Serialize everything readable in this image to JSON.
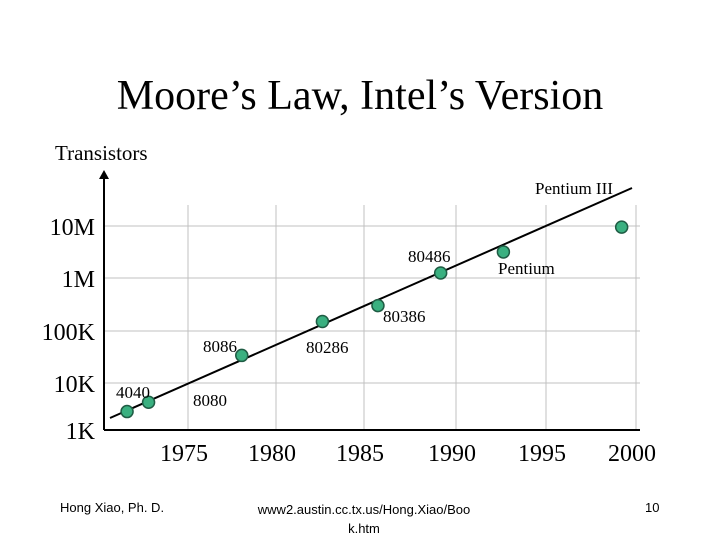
{
  "slide": {
    "title": "Moore’s Law, Intel’s Version",
    "footer_left": "Hong Xiao, Ph. D.",
    "footer_center": "www2.austin.cc.tx.us/Hong.Xiao/Boo k.htm",
    "footer_right": "10"
  },
  "chart_data": {
    "type": "scatter",
    "title": "",
    "ylabel": "Transistors",
    "xlabel": "",
    "y_scale": "log",
    "x_ticks": [
      "1975",
      "1980",
      "1985",
      "1990",
      "1995",
      "2000"
    ],
    "y_ticks": [
      "1K",
      "10K",
      "100K",
      "1M",
      "10M"
    ],
    "grid": true,
    "trendline": true,
    "colors": {
      "marker_fill": "#3ab080",
      "marker_stroke": "#1f5c44",
      "line": "#000000",
      "grid": "#c0c0c0"
    },
    "series": [
      {
        "points": [
          {
            "label": "4040",
            "x": 1971.6,
            "y": 2300
          },
          {
            "label": "",
            "x": 1972.8,
            "y": 3500
          },
          {
            "label": "8086",
            "x": 1978,
            "y": 29000
          },
          {
            "label": "",
            "x": 1982.5,
            "y": 134000
          },
          {
            "label": "",
            "x": 1985.6,
            "y": 275000
          },
          {
            "label": "80486",
            "x": 1989.1,
            "y": 1200000
          },
          {
            "label": "",
            "x": 1992.6,
            "y": 3100000
          },
          {
            "label": "",
            "x": 1999.2,
            "y": 9500000
          }
        ]
      }
    ],
    "annotations": [
      "8080",
      "80286",
      "80386",
      "Pentium",
      "Pentium III"
    ]
  }
}
